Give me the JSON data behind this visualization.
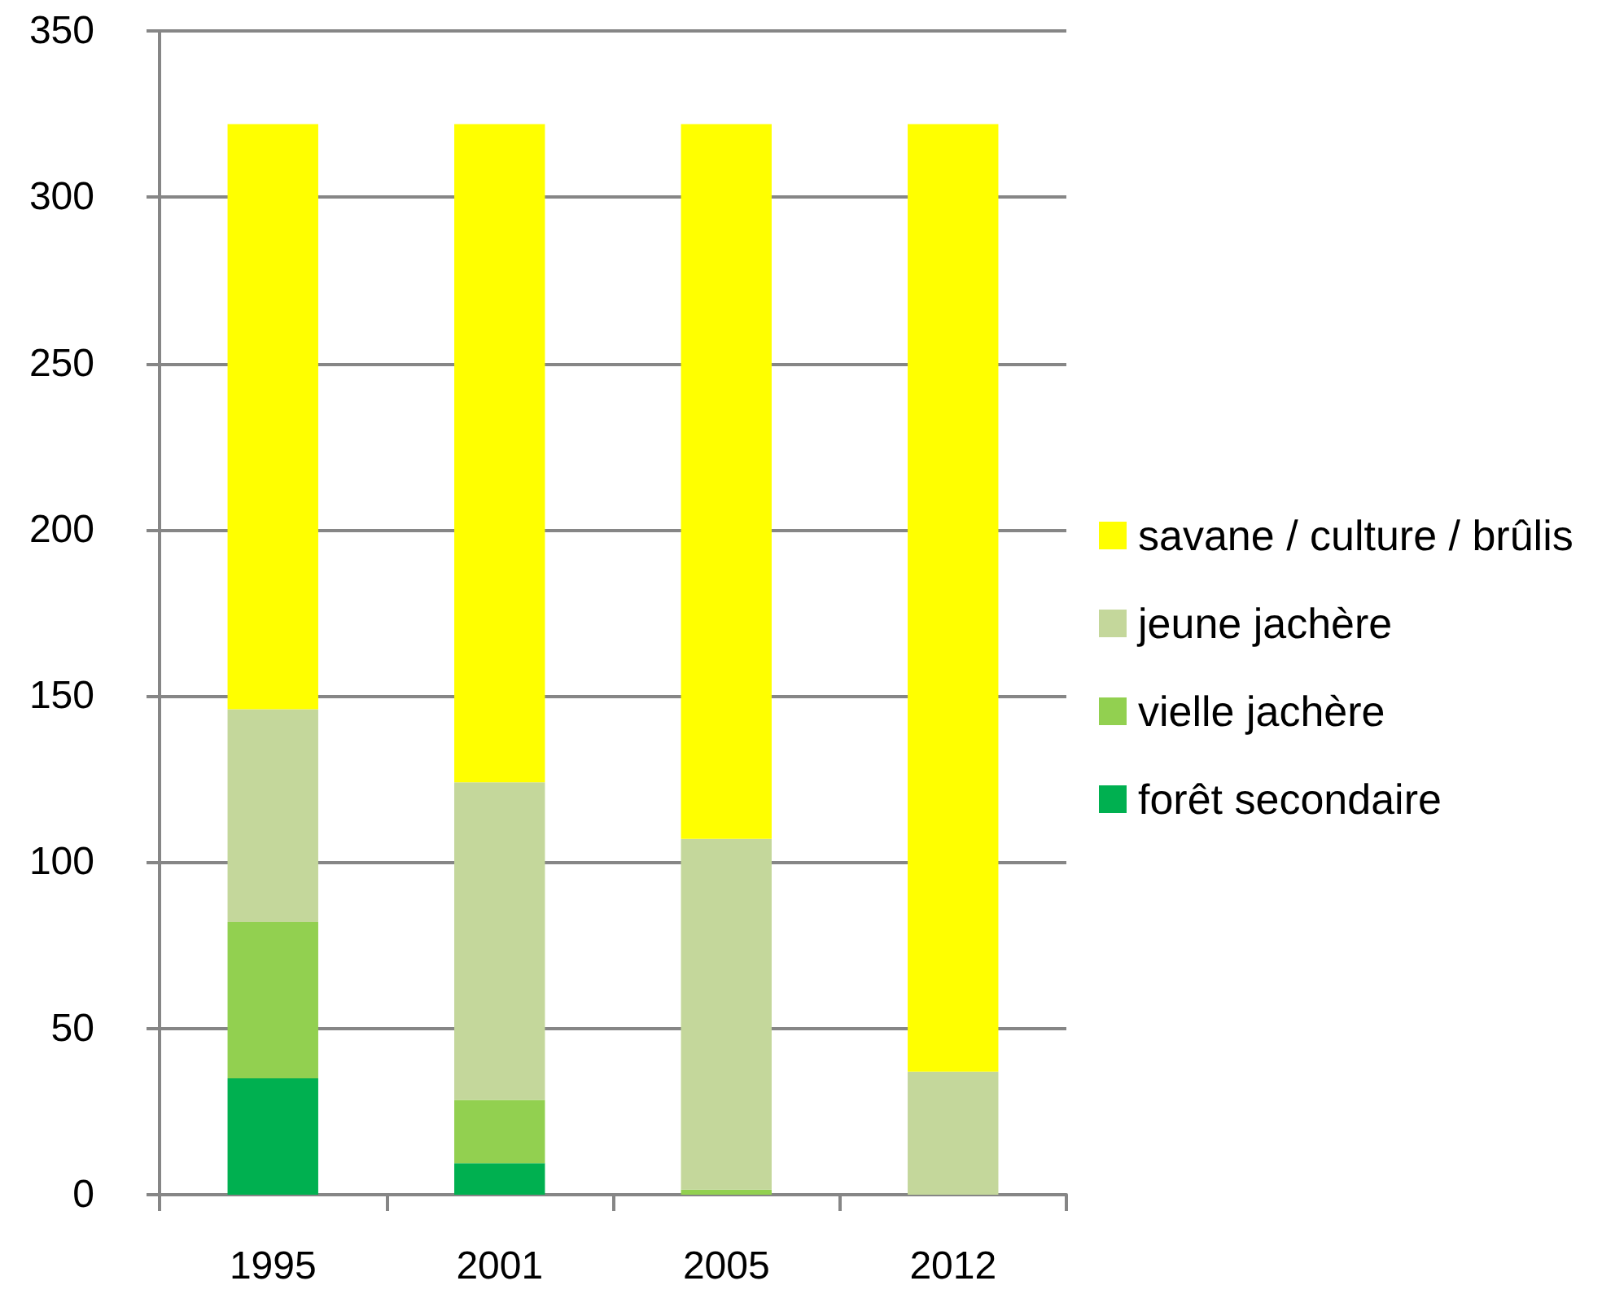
{
  "chart_data": {
    "type": "bar",
    "stacked": true,
    "categories": [
      "1995",
      "2001",
      "2005",
      "2012"
    ],
    "series": [
      {
        "name": "forêt secondaire",
        "color": "#00b050",
        "values": [
          35,
          9.5,
          0,
          0
        ]
      },
      {
        "name": "vielle jachère",
        "color": "#92d050",
        "values": [
          47,
          19,
          1.5,
          0
        ]
      },
      {
        "name": "jeune jachère",
        "color": "#c4d79b",
        "values": [
          64,
          95.5,
          105.5,
          37
        ]
      },
      {
        "name": "savane / culture / brûlis",
        "color": "#ffff00",
        "values": [
          176,
          198,
          215,
          285
        ]
      }
    ],
    "ylim": [
      0,
      350
    ],
    "yticks": [
      0,
      50,
      100,
      150,
      200,
      250,
      300,
      350
    ],
    "grid": "y",
    "legend": "right"
  }
}
